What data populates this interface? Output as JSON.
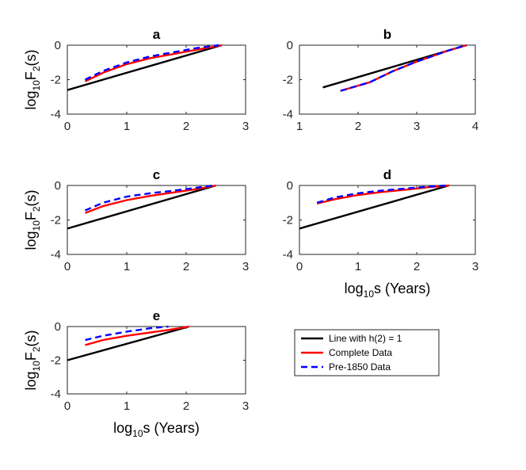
{
  "colors": {
    "line_h2": "#000000",
    "complete": "#ff0000",
    "pre1850": "#0000ff",
    "axis": "#262626",
    "background": "#ffffff"
  },
  "ylabel_parts": {
    "main": "log",
    "sub1": "10",
    "mid": "F",
    "sub2": "2",
    "end": "(s)"
  },
  "xlabel_parts": {
    "main": "log",
    "sub1": "10",
    "end": "s (Years)"
  },
  "legend": {
    "items": [
      {
        "label": "Line with h(2) = 1",
        "style": "solid",
        "color": "#000000"
      },
      {
        "label": "Complete Data",
        "style": "solid",
        "color": "#ff0000"
      },
      {
        "label": "Pre-1850 Data",
        "style": "dashed",
        "color": "#0000ff"
      }
    ]
  },
  "chart_data": [
    {
      "type": "line",
      "title": "a",
      "xlim": [
        0,
        3
      ],
      "ylim": [
        -4,
        0
      ],
      "xticks": [
        "0",
        "1",
        "2",
        "3"
      ],
      "yticks": [
        "0",
        "-2",
        "-4"
      ],
      "show_ylabel": true,
      "show_xlabel": false,
      "series": [
        {
          "name": "Line with h(2) = 1",
          "x": [
            0,
            2.6
          ],
          "y": [
            -2.6,
            0
          ]
        },
        {
          "name": "Complete Data",
          "x": [
            0.3,
            0.6,
            1.0,
            1.4,
            1.8,
            2.2,
            2.6
          ],
          "y": [
            -2.1,
            -1.6,
            -1.1,
            -0.75,
            -0.5,
            -0.25,
            0
          ]
        },
        {
          "name": "Pre-1850 Data",
          "x": [
            0.3,
            0.6,
            1.0,
            1.4,
            1.8,
            2.2,
            2.55
          ],
          "y": [
            -2.0,
            -1.5,
            -1.0,
            -0.65,
            -0.4,
            -0.15,
            0
          ]
        }
      ]
    },
    {
      "type": "line",
      "title": "b",
      "xlim": [
        1,
        4
      ],
      "ylim": [
        -4,
        0
      ],
      "xticks": [
        "1",
        "2",
        "3",
        "4"
      ],
      "yticks": [
        "0",
        "-2",
        "-4"
      ],
      "show_ylabel": false,
      "show_xlabel": false,
      "series": [
        {
          "name": "Line with h(2) = 1",
          "x": [
            1.4,
            3.85
          ],
          "y": [
            -2.45,
            0
          ]
        },
        {
          "name": "Complete Data",
          "x": [
            1.7,
            2.2,
            2.6,
            3.0,
            3.3,
            3.55,
            3.85
          ],
          "y": [
            -2.65,
            -2.15,
            -1.5,
            -0.95,
            -0.6,
            -0.3,
            0
          ]
        },
        {
          "name": "Pre-1850 Data",
          "x": [
            1.7,
            2.2,
            2.6,
            3.0,
            3.3,
            3.55,
            3.85
          ],
          "y": [
            -2.65,
            -2.15,
            -1.5,
            -0.95,
            -0.6,
            -0.3,
            0
          ]
        }
      ]
    },
    {
      "type": "line",
      "title": "c",
      "xlim": [
        0,
        3
      ],
      "ylim": [
        -4,
        0
      ],
      "xticks": [
        "0",
        "1",
        "2",
        "3"
      ],
      "yticks": [
        "0",
        "-2",
        "-4"
      ],
      "show_ylabel": true,
      "show_xlabel": false,
      "series": [
        {
          "name": "Line with h(2) = 1",
          "x": [
            0,
            2.5
          ],
          "y": [
            -2.5,
            0
          ]
        },
        {
          "name": "Complete Data",
          "x": [
            0.3,
            0.6,
            1.0,
            1.4,
            1.8,
            2.2,
            2.5
          ],
          "y": [
            -1.6,
            -1.2,
            -0.85,
            -0.6,
            -0.4,
            -0.2,
            0
          ]
        },
        {
          "name": "Pre-1850 Data",
          "x": [
            0.3,
            0.6,
            1.0,
            1.4,
            1.8,
            2.2,
            2.45
          ],
          "y": [
            -1.45,
            -1.0,
            -0.65,
            -0.45,
            -0.3,
            -0.12,
            0
          ]
        }
      ]
    },
    {
      "type": "line",
      "title": "d",
      "xlim": [
        0,
        3
      ],
      "ylim": [
        -4,
        0
      ],
      "xticks": [
        "0",
        "1",
        "2",
        "3"
      ],
      "yticks": [
        "0",
        "-2",
        "-4"
      ],
      "show_ylabel": false,
      "show_xlabel": true,
      "series": [
        {
          "name": "Line with h(2) = 1",
          "x": [
            0,
            2.55
          ],
          "y": [
            -2.5,
            0
          ]
        },
        {
          "name": "Complete Data",
          "x": [
            0.3,
            0.6,
            1.0,
            1.4,
            1.8,
            2.2,
            2.55
          ],
          "y": [
            -1.05,
            -0.8,
            -0.55,
            -0.38,
            -0.25,
            -0.1,
            0
          ]
        },
        {
          "name": "Pre-1850 Data",
          "x": [
            0.3,
            0.6,
            1.0,
            1.4,
            1.8,
            2.2,
            2.5
          ],
          "y": [
            -1.0,
            -0.7,
            -0.45,
            -0.3,
            -0.18,
            -0.07,
            0
          ]
        }
      ]
    },
    {
      "type": "line",
      "title": "e",
      "xlim": [
        0,
        3
      ],
      "ylim": [
        -4,
        0
      ],
      "xticks": [
        "0",
        "1",
        "2",
        "3"
      ],
      "yticks": [
        "0",
        "-2",
        "-4"
      ],
      "show_ylabel": true,
      "show_xlabel": true,
      "series": [
        {
          "name": "Line with h(2) = 1",
          "x": [
            0,
            2.05
          ],
          "y": [
            -2.0,
            0
          ]
        },
        {
          "name": "Complete Data",
          "x": [
            0.3,
            0.6,
            1.0,
            1.4,
            1.7,
            2.05
          ],
          "y": [
            -1.1,
            -0.8,
            -0.55,
            -0.35,
            -0.2,
            0
          ]
        },
        {
          "name": "Pre-1850 Data",
          "x": [
            0.3,
            0.6,
            1.0,
            1.4,
            1.7
          ],
          "y": [
            -0.8,
            -0.55,
            -0.3,
            -0.1,
            0
          ]
        }
      ]
    }
  ]
}
